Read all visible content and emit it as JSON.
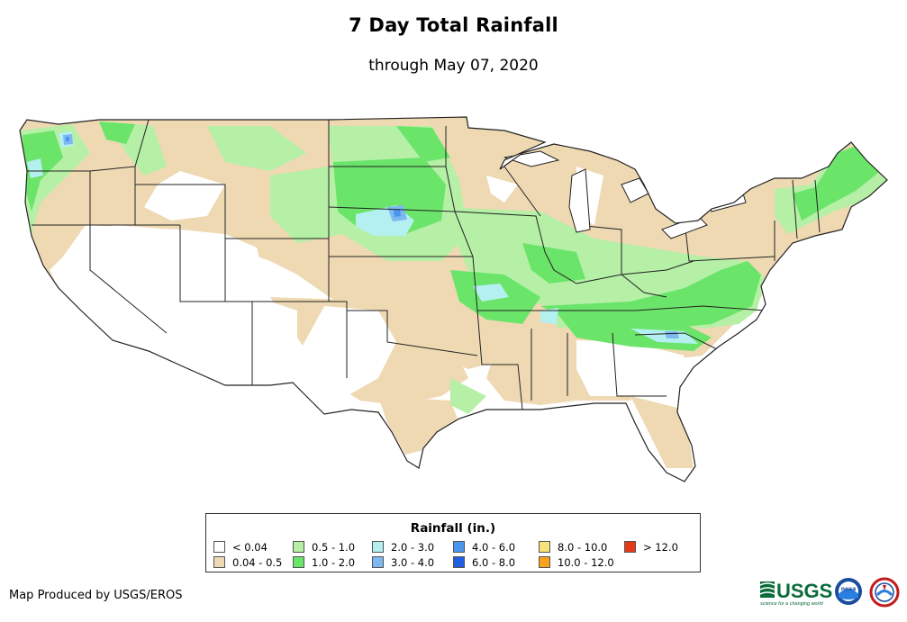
{
  "title": "7 Day Total Rainfall",
  "subtitle": "through May 07, 2020",
  "legend": {
    "title": "Rainfall (in.)",
    "items": [
      {
        "label": "< 0.04",
        "color": "#ffffff"
      },
      {
        "label": "0.04 - 0.5",
        "color": "#eed9b3"
      },
      {
        "label": "0.5 - 1.0",
        "color": "#b5f0a6"
      },
      {
        "label": "1.0 - 2.0",
        "color": "#6be46a"
      },
      {
        "label": "2.0 - 3.0",
        "color": "#b4f0f0"
      },
      {
        "label": "3.0 - 4.0",
        "color": "#7db9f0"
      },
      {
        "label": "4.0 - 6.0",
        "color": "#4a95ee"
      },
      {
        "label": "6.0 - 8.0",
        "color": "#1f5fe0"
      },
      {
        "label": "8.0 - 10.0",
        "color": "#f8e27a"
      },
      {
        "label": "10.0 - 12.0",
        "color": "#f8a31b"
      },
      {
        "label": "> 12.0",
        "color": "#e8381a"
      }
    ]
  },
  "credit": "Map Produced by USGS/EROS",
  "logos": {
    "usgs": "USGS",
    "usgs_tagline": "science for a changing world",
    "noaa": "noaa"
  },
  "map": {
    "region": "Contiguous United States",
    "colors": {
      "land_dry": "#ffffff",
      "light": "#eed9b3",
      "moderate": "#b5f0a6",
      "heavy": "#6be46a",
      "very_heavy": "#b4f0f0",
      "extreme": "#7db9f0",
      "peak": "#4a95ee",
      "border": "#222222"
    }
  }
}
